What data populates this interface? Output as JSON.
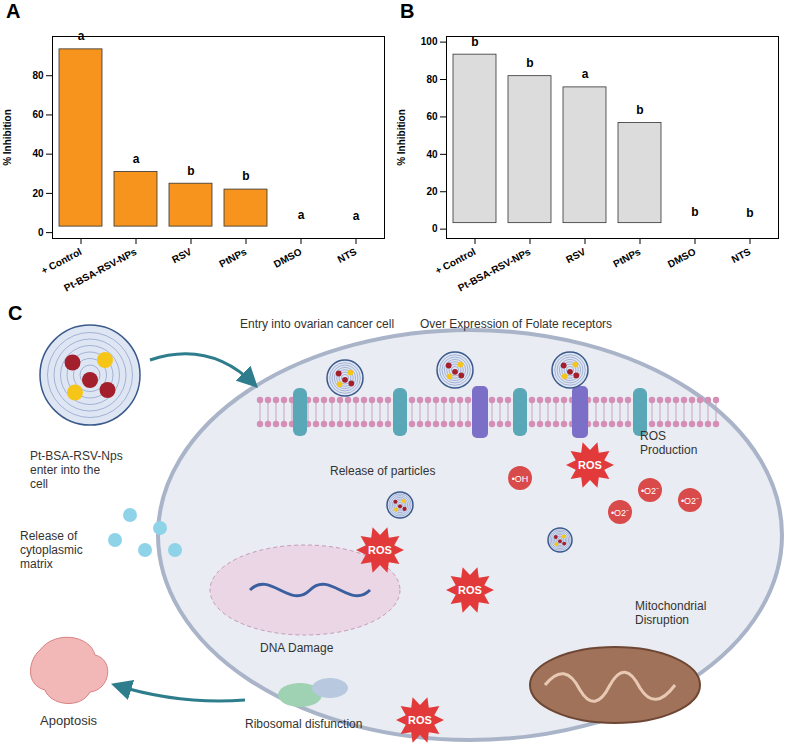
{
  "chart_data": [
    {
      "type": "bar",
      "title": "A",
      "y_label": "% Inhibition",
      "categories": [
        "+ Control",
        "Pt-BSA-RSV-NPs",
        "RSV",
        "PtNPs",
        "DMSO",
        "NTS"
      ],
      "values": [
        96.5,
        34,
        28,
        25,
        5.5,
        5
      ],
      "annotations": [
        "a",
        "a",
        "b",
        "b",
        "a",
        "a"
      ],
      "color": "#f7941d",
      "ylim": [
        -3,
        100
      ],
      "yticks": [
        0,
        20,
        40,
        60,
        80
      ],
      "grid": false
    },
    {
      "type": "bar",
      "title": "B",
      "y_label": "% Inhibition",
      "categories": [
        "+ Control",
        "Pt-BSA-RSV-NPs",
        "RSV",
        "PtNPs",
        "DMSO",
        "NTS"
      ],
      "values": [
        96.5,
        85,
        79,
        60,
        5.5,
        5
      ],
      "annotations": [
        "b",
        "b",
        "a",
        "b",
        "b",
        "b"
      ],
      "color": "#dcdcdc",
      "ylim": [
        -5,
        103
      ],
      "yticks": [
        0,
        20,
        40,
        60,
        80,
        100
      ],
      "grid": false
    }
  ],
  "diagram": {
    "title": "C",
    "nanoparticle": "Pt-BSA-RSV-Nps",
    "enter": "Pt-BSA-RSV-Nps enter into the cell",
    "entry": "Entry into ovarian cancer cell",
    "receptors": "Over Expression of Folate receptors",
    "release_particles": "Release of particles",
    "ros_production": "ROS Production",
    "cytoplasmic": "Release of cytoplasmic matrix",
    "dna": "DNA Damage",
    "ribosome": "Ribosomal disfunction",
    "mitochondria": "Mitochondrial Disruption",
    "apoptosis": "Apoptosis",
    "ros": [
      "ROS",
      "ROS",
      "ROS",
      "ROS"
    ],
    "radicals": [
      "•OH",
      "•O2⁻",
      "•O2⁻",
      "•O2⁻"
    ]
  }
}
